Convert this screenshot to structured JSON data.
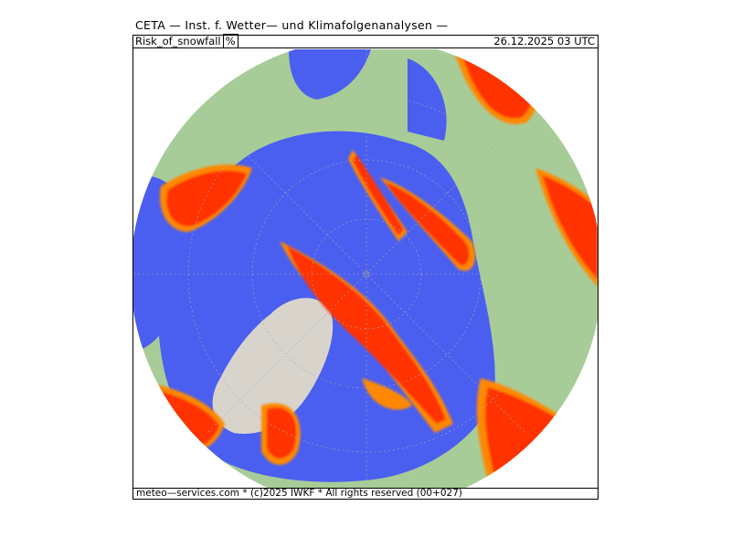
{
  "header": {
    "title": "CETA — Inst. f. Wetter— und Klimafolgenanalysen —"
  },
  "map": {
    "parameter": "Risk_of_snowfall",
    "unit": "%",
    "valid_time": "26.12.2025 03 UTC",
    "projection": "north polar stereographic",
    "colors": {
      "ocean": "#4a5ef0",
      "land": "#a8cc98",
      "greenland_ice": "#d8d4cc",
      "snow_risk_high": "#ff3300",
      "snow_risk_mid": "#ff8800",
      "snow_risk_low": "#ffd000"
    }
  },
  "footer": {
    "credit": "meteo—services.com * (c)2025 IWKF * All rights reserved (00+027)"
  }
}
